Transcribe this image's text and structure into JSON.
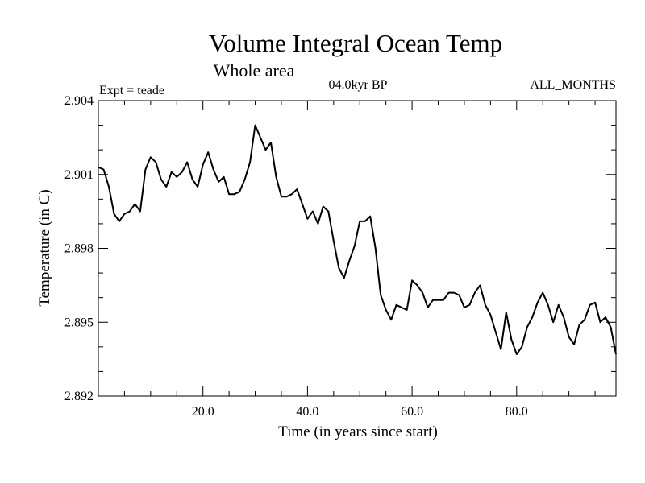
{
  "chart_data": {
    "type": "line",
    "title": "Volume Integral Ocean Temp",
    "subtitle": "Whole area",
    "annotations": {
      "experiment": "Expt = teade",
      "period": "04.0kyr BP",
      "months": "ALL_MONTHS"
    },
    "xlabel": "Time (in years since start)",
    "ylabel": "Temperature (in C)",
    "xlim": [
      0,
      99
    ],
    "ylim": [
      2.892,
      2.904
    ],
    "x_ticks": [
      20,
      40,
      60,
      80
    ],
    "x_tick_labels": [
      "20.0",
      "40.0",
      "60.0",
      "80.0"
    ],
    "y_ticks": [
      2.892,
      2.895,
      2.898,
      2.901,
      2.904
    ],
    "y_tick_labels": [
      "2.892",
      "2.895",
      "2.898",
      "2.901",
      "2.904"
    ],
    "x_minor_step": 5,
    "y_minor_step": 0.001,
    "grid": false,
    "series": [
      {
        "name": "temperature",
        "x": [
          0,
          1,
          2,
          3,
          4,
          5,
          6,
          7,
          8,
          9,
          10,
          11,
          12,
          13,
          14,
          15,
          16,
          17,
          18,
          19,
          20,
          21,
          22,
          23,
          24,
          25,
          26,
          27,
          28,
          29,
          30,
          31,
          32,
          33,
          34,
          35,
          36,
          37,
          38,
          39,
          40,
          41,
          42,
          43,
          44,
          45,
          46,
          47,
          48,
          49,
          50,
          51,
          52,
          53,
          54,
          55,
          56,
          57,
          58,
          59,
          60,
          61,
          62,
          63,
          64,
          65,
          66,
          67,
          68,
          69,
          70,
          71,
          72,
          73,
          74,
          75,
          76,
          77,
          78,
          79,
          80,
          81,
          82,
          83,
          84,
          85,
          86,
          87,
          88,
          89,
          90,
          91,
          92,
          93,
          94,
          95,
          96,
          97,
          98,
          99
        ],
        "values": [
          2.9013,
          2.9012,
          2.9005,
          2.8994,
          2.8991,
          2.8994,
          2.8995,
          2.8998,
          2.8995,
          2.9012,
          2.9017,
          2.9015,
          2.9008,
          2.9005,
          2.9011,
          2.9009,
          2.9011,
          2.9015,
          2.9008,
          2.9005,
          2.9014,
          2.9019,
          2.9012,
          2.9007,
          2.9009,
          2.9002,
          2.9002,
          2.9003,
          2.9008,
          2.9015,
          2.903,
          2.9025,
          2.902,
          2.9023,
          2.9009,
          2.9001,
          2.9001,
          2.9002,
          2.9004,
          2.8998,
          2.8992,
          2.8995,
          2.899,
          2.8997,
          2.8995,
          2.8983,
          2.8972,
          2.8968,
          2.8975,
          2.8981,
          2.8991,
          2.8991,
          2.8993,
          2.898,
          2.8961,
          2.8955,
          2.8951,
          2.8957,
          2.8956,
          2.8955,
          2.8967,
          2.8965,
          2.8962,
          2.8956,
          2.8959,
          2.8959,
          2.8959,
          2.8962,
          2.8962,
          2.8961,
          2.8956,
          2.8957,
          2.8962,
          2.8965,
          2.8957,
          2.8953,
          2.8946,
          2.8939,
          2.8954,
          2.8943,
          2.8937,
          2.894,
          2.8948,
          2.8952,
          2.8958,
          2.8962,
          2.8957,
          2.895,
          2.8957,
          2.8952,
          2.8944,
          2.8941,
          2.8949,
          2.8951,
          2.8957,
          2.8958,
          2.895,
          2.8952,
          2.8948,
          2.8937
        ]
      }
    ]
  }
}
